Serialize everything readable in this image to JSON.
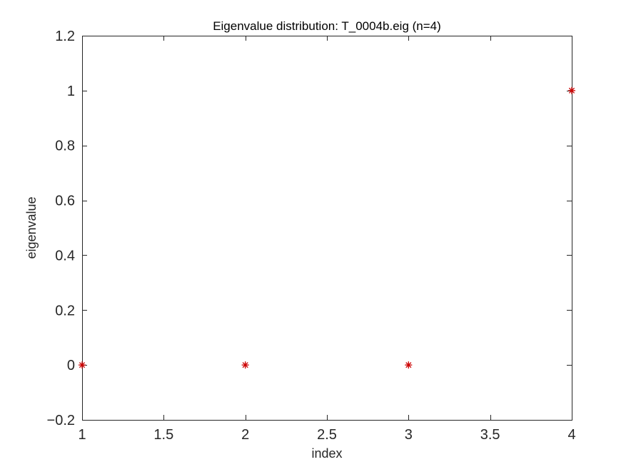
{
  "chart_data": {
    "type": "scatter",
    "title": "Eigenvalue distribution: T_0004b.eig (n=4)",
    "xlabel": "index",
    "ylabel": "eigenvalue",
    "xlim": [
      1,
      4
    ],
    "ylim": [
      -0.2,
      1.2
    ],
    "x_ticks": [
      1,
      1.5,
      2,
      2.5,
      3,
      3.5,
      4
    ],
    "x_tick_labels": [
      "1",
      "1.5",
      "2",
      "2.5",
      "3",
      "3.5",
      "4"
    ],
    "y_ticks": [
      -0.2,
      0,
      0.2,
      0.4,
      0.6,
      0.8,
      1,
      1.2
    ],
    "y_tick_labels": [
      "−0.2",
      "0",
      "0.2",
      "0.4",
      "0.6",
      "0.8",
      "1",
      "1.2"
    ],
    "grid": false,
    "legend": "none",
    "marker": "asterisk",
    "marker_color": "#cc0000",
    "series": [
      {
        "x": [
          1,
          2,
          3,
          4
        ],
        "y": [
          0.0,
          0.0,
          0.0,
          1.0
        ]
      }
    ]
  }
}
